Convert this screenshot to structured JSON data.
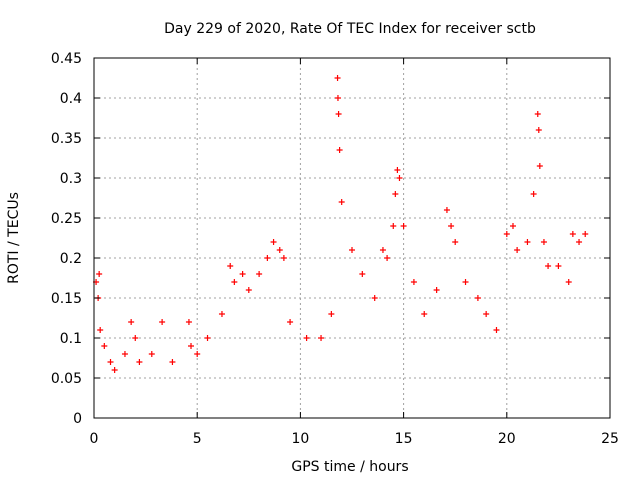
{
  "chart_data": {
    "type": "scatter",
    "title": "Day 229 of 2020, Rate Of TEC Index for receiver sctb",
    "xlabel": "GPS time / hours",
    "ylabel": "ROTI / TECUs",
    "xlim": [
      0,
      25
    ],
    "ylim": [
      0,
      0.45
    ],
    "x_ticks": [
      "0",
      "5",
      "10",
      "15",
      "20",
      "25"
    ],
    "y_ticks": [
      "0",
      "0.05",
      "0.1",
      "0.15",
      "0.2",
      "0.25",
      "0.3",
      "0.35",
      "0.4",
      "0.45"
    ],
    "grid": true,
    "marker": "+",
    "color": "#ff0000",
    "series": [
      {
        "values_description_free": true,
        "x": [
          0.1,
          0.2,
          0.25,
          0.3,
          0.5,
          0.8,
          1.0,
          1.5,
          1.8,
          2.0,
          2.2,
          2.8,
          3.3,
          3.8,
          4.6,
          4.7,
          5.0,
          5.5,
          6.2,
          6.6,
          6.8,
          7.2,
          7.5,
          8.0,
          8.4,
          8.7,
          9.0,
          9.2,
          9.5,
          10.3,
          11.0,
          11.5,
          11.8,
          11.82,
          11.85,
          11.9,
          12.0,
          12.5,
          13.0,
          13.6,
          14.0,
          14.2,
          14.5,
          14.6,
          14.7,
          14.8,
          15.0,
          15.5,
          16.0,
          16.6,
          17.1,
          17.3,
          17.5,
          18.0,
          18.6,
          19.0,
          19.5,
          20.0,
          20.3,
          20.5,
          21.0,
          21.3,
          21.5,
          21.55,
          21.6,
          21.8,
          22.0,
          22.5,
          23.0,
          23.2,
          23.5,
          23.8
        ],
        "y": [
          0.17,
          0.15,
          0.18,
          0.11,
          0.09,
          0.07,
          0.06,
          0.08,
          0.12,
          0.1,
          0.07,
          0.08,
          0.12,
          0.07,
          0.12,
          0.09,
          0.08,
          0.1,
          0.13,
          0.19,
          0.17,
          0.18,
          0.16,
          0.18,
          0.2,
          0.22,
          0.21,
          0.2,
          0.12,
          0.1,
          0.1,
          0.13,
          0.425,
          0.4,
          0.38,
          0.335,
          0.27,
          0.21,
          0.18,
          0.15,
          0.21,
          0.2,
          0.24,
          0.28,
          0.31,
          0.3,
          0.24,
          0.17,
          0.13,
          0.16,
          0.26,
          0.24,
          0.22,
          0.17,
          0.15,
          0.13,
          0.11,
          0.23,
          0.24,
          0.21,
          0.22,
          0.28,
          0.38,
          0.36,
          0.315,
          0.22,
          0.19,
          0.19,
          0.17,
          0.23,
          0.22,
          0.23
        ]
      }
    ]
  }
}
